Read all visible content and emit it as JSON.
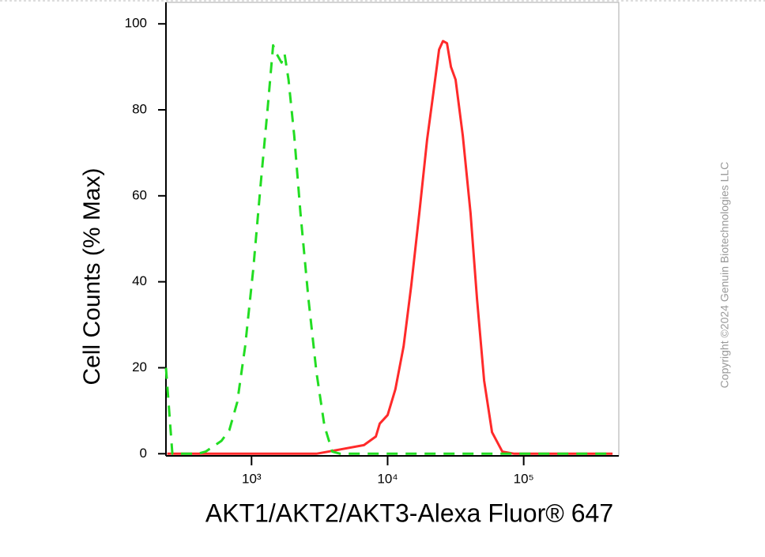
{
  "chart_data": {
    "type": "line",
    "x_label": "AKT1/AKT2/AKT3-Alexa Fluor® 647",
    "y_label": "Cell Counts (% Max)",
    "copyright": "Copyright ©2024 Genuin Biotechnologies LLC",
    "xscale": "log",
    "xlim": [
      235,
      500000
    ],
    "ylim": [
      -0.5,
      105
    ],
    "xticks": [
      {
        "value": 1000,
        "label": "10³"
      },
      {
        "value": 10000,
        "label": "10⁴"
      },
      {
        "value": 100000,
        "label": "10⁵"
      }
    ],
    "yticks": [
      0,
      20,
      40,
      60,
      80,
      100
    ],
    "series": [
      {
        "color": "#ff2a2a",
        "dash": false,
        "x": [
          240,
          3000,
          4500,
          6700,
          8200,
          8750,
          10000,
          11400,
          13100,
          14900,
          17100,
          19500,
          21700,
          23900,
          25500,
          27300,
          29200,
          31600,
          35700,
          40700,
          45400,
          51200,
          58500,
          69600,
          85100,
          450000
        ],
        "values": [
          0,
          0,
          1,
          2,
          4,
          7,
          9,
          15,
          25,
          39,
          56,
          73,
          84,
          94,
          96,
          95.5,
          90,
          87,
          74,
          56,
          36,
          17,
          5,
          0.5,
          0,
          0
        ]
      },
      {
        "color": "#22dd22",
        "dash": true,
        "x": [
          235,
          262,
          403,
          460,
          601,
          687,
          785,
          898,
          1030,
          1170,
          1310,
          1440,
          1530,
          1660,
          1750,
          1870,
          2060,
          2290,
          2620,
          3000,
          3430,
          3920,
          4480,
          450000
        ],
        "values": [
          20,
          0,
          0,
          0.5,
          3,
          5.5,
          12,
          25,
          43,
          63,
          80,
          95,
          93,
          91,
          93,
          87,
          74,
          56,
          36,
          19,
          6.5,
          0.5,
          0,
          0
        ]
      }
    ]
  }
}
